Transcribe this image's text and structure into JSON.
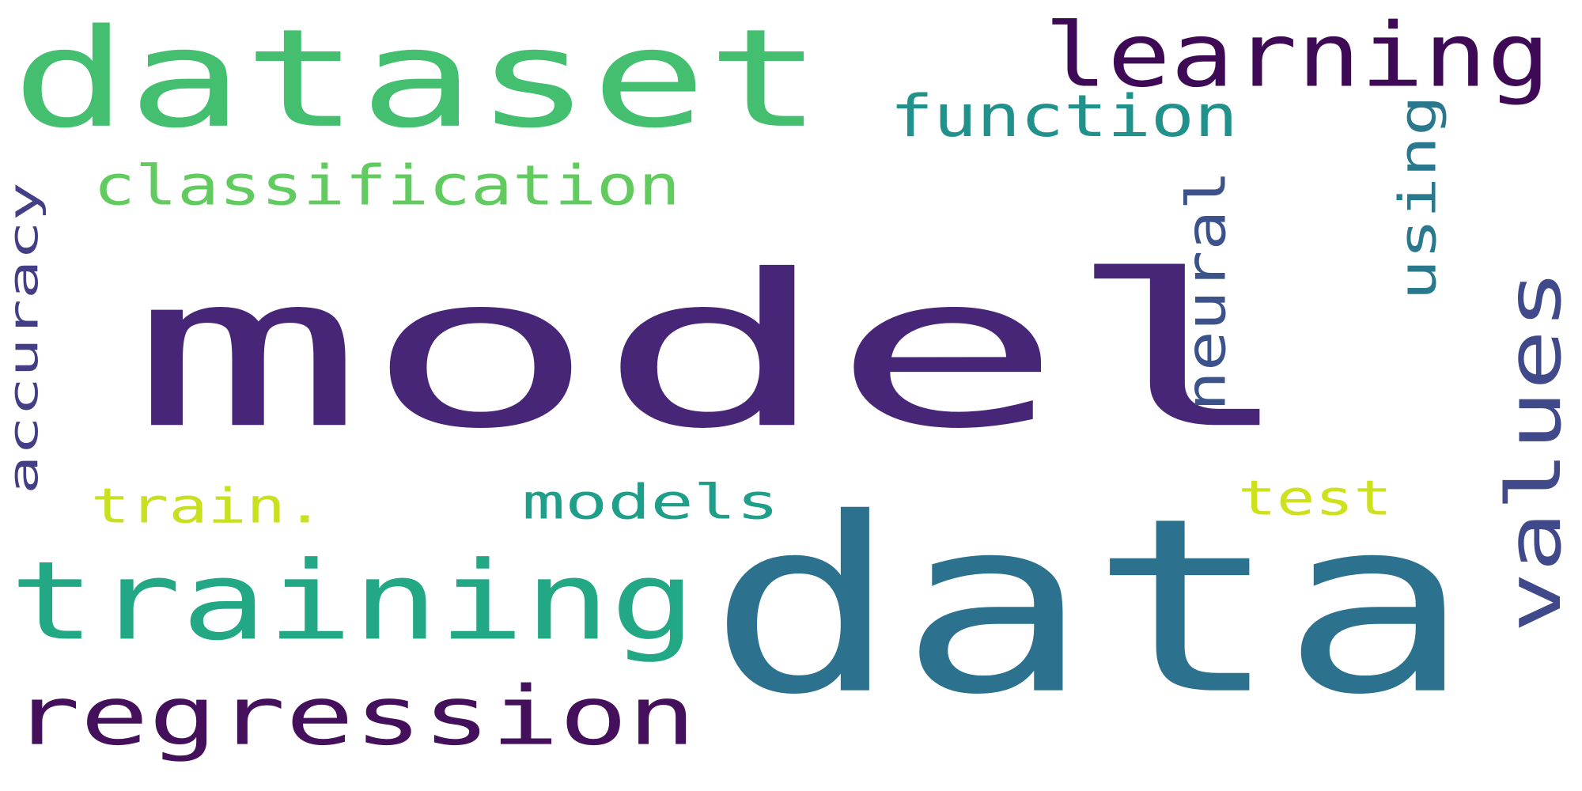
{
  "words": {
    "model": {
      "text": "model",
      "color": "#472677"
    },
    "data": {
      "text": "data",
      "color": "#2c728e"
    },
    "dataset": {
      "text": "dataset",
      "color": "#44bf70"
    },
    "training": {
      "text": "training",
      "color": "#22a884"
    },
    "regression": {
      "text": "regression",
      "color": "#440f5b"
    },
    "learning": {
      "text": "learning",
      "color": "#3e0a56"
    },
    "classification": {
      "text": "classification",
      "color": "#62cb5f"
    },
    "function": {
      "text": "function",
      "color": "#21918c"
    },
    "accuracy": {
      "text": "accuracy",
      "color": "#433e85"
    },
    "neural": {
      "text": "neural",
      "color": "#3b528b"
    },
    "using": {
      "text": "using",
      "color": "#2a788e"
    },
    "values": {
      "text": "values",
      "color": "#404a8a"
    },
    "train": {
      "text": "train.",
      "color": "#c8e020"
    },
    "models": {
      "text": "models",
      "color": "#1f9e89"
    },
    "test": {
      "text": "test",
      "color": "#cde11d"
    }
  }
}
